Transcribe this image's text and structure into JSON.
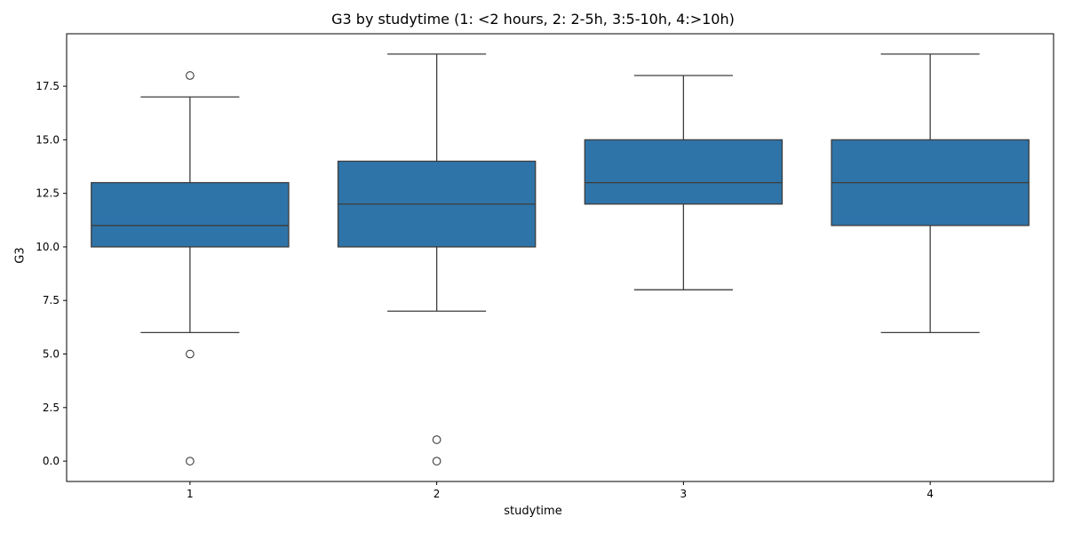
{
  "chart_data": {
    "type": "box",
    "title": "G3 by studytime (1: <2 hours, 2: 2-5h, 3:5-10h, 4:>10h)",
    "xlabel": "studytime",
    "ylabel": "G3",
    "categories": [
      "1",
      "2",
      "3",
      "4"
    ],
    "ylim": [
      -0.95,
      19.95
    ],
    "yticks": [
      0.0,
      2.5,
      5.0,
      7.5,
      10.0,
      12.5,
      15.0,
      17.5
    ],
    "ytick_labels": [
      "0.0",
      "2.5",
      "5.0",
      "7.5",
      "10.0",
      "12.5",
      "15.0",
      "17.5"
    ],
    "grid": false,
    "box_color": "#2f74a8",
    "line_color": "#3d3d3d",
    "boxes": [
      {
        "category": "1",
        "whisker_low": 6,
        "q1": 10,
        "median": 11,
        "q3": 13,
        "whisker_high": 17,
        "outliers": [
          18,
          5,
          0
        ]
      },
      {
        "category": "2",
        "whisker_low": 7,
        "q1": 10,
        "median": 12,
        "q3": 14,
        "whisker_high": 19,
        "outliers": [
          1,
          0
        ]
      },
      {
        "category": "3",
        "whisker_low": 8,
        "q1": 12,
        "median": 13,
        "q3": 15,
        "whisker_high": 18,
        "outliers": []
      },
      {
        "category": "4",
        "whisker_low": 6,
        "q1": 11,
        "median": 13,
        "q3": 15,
        "whisker_high": 19,
        "outliers": []
      }
    ]
  }
}
